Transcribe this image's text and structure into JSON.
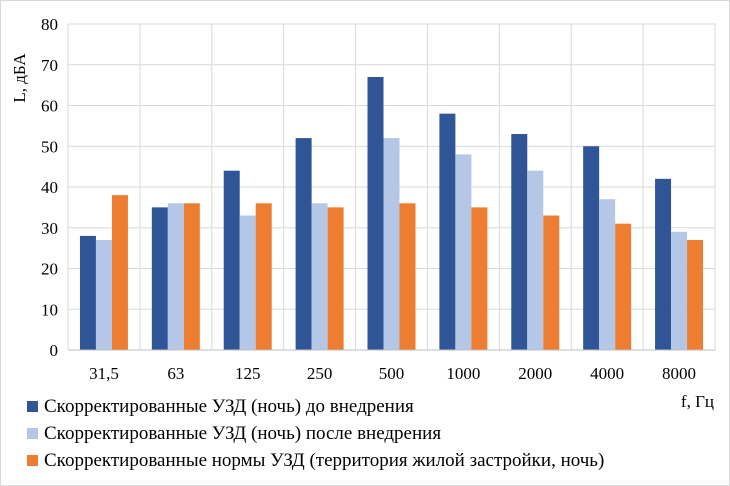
{
  "chart_data": {
    "type": "bar",
    "title": "",
    "xlabel": "f, Гц",
    "ylabel": "L, дБА",
    "ylim": [
      0,
      80
    ],
    "ytick_step": 10,
    "grid": true,
    "legend_position": "bottom",
    "categories": [
      "31,5",
      "63",
      "125",
      "250",
      "500",
      "1000",
      "2000",
      "4000",
      "8000"
    ],
    "series": [
      {
        "name": "Скорректированные УЗД (ночь) до внедрения",
        "color": "#2f5597",
        "values": [
          28,
          35,
          44,
          52,
          67,
          58,
          53,
          50,
          42
        ]
      },
      {
        "name": "Скорректированные УЗД (ночь) после внедрения",
        "color": "#b4c7e7",
        "values": [
          27,
          36,
          33,
          36,
          52,
          48,
          44,
          37,
          29
        ]
      },
      {
        "name": "Скорректированные нормы УЗД (территория жилой застройки, ночь)",
        "color": "#ed7d31",
        "values": [
          38,
          36,
          36,
          35,
          36,
          35,
          33,
          31,
          27
        ]
      }
    ]
  }
}
